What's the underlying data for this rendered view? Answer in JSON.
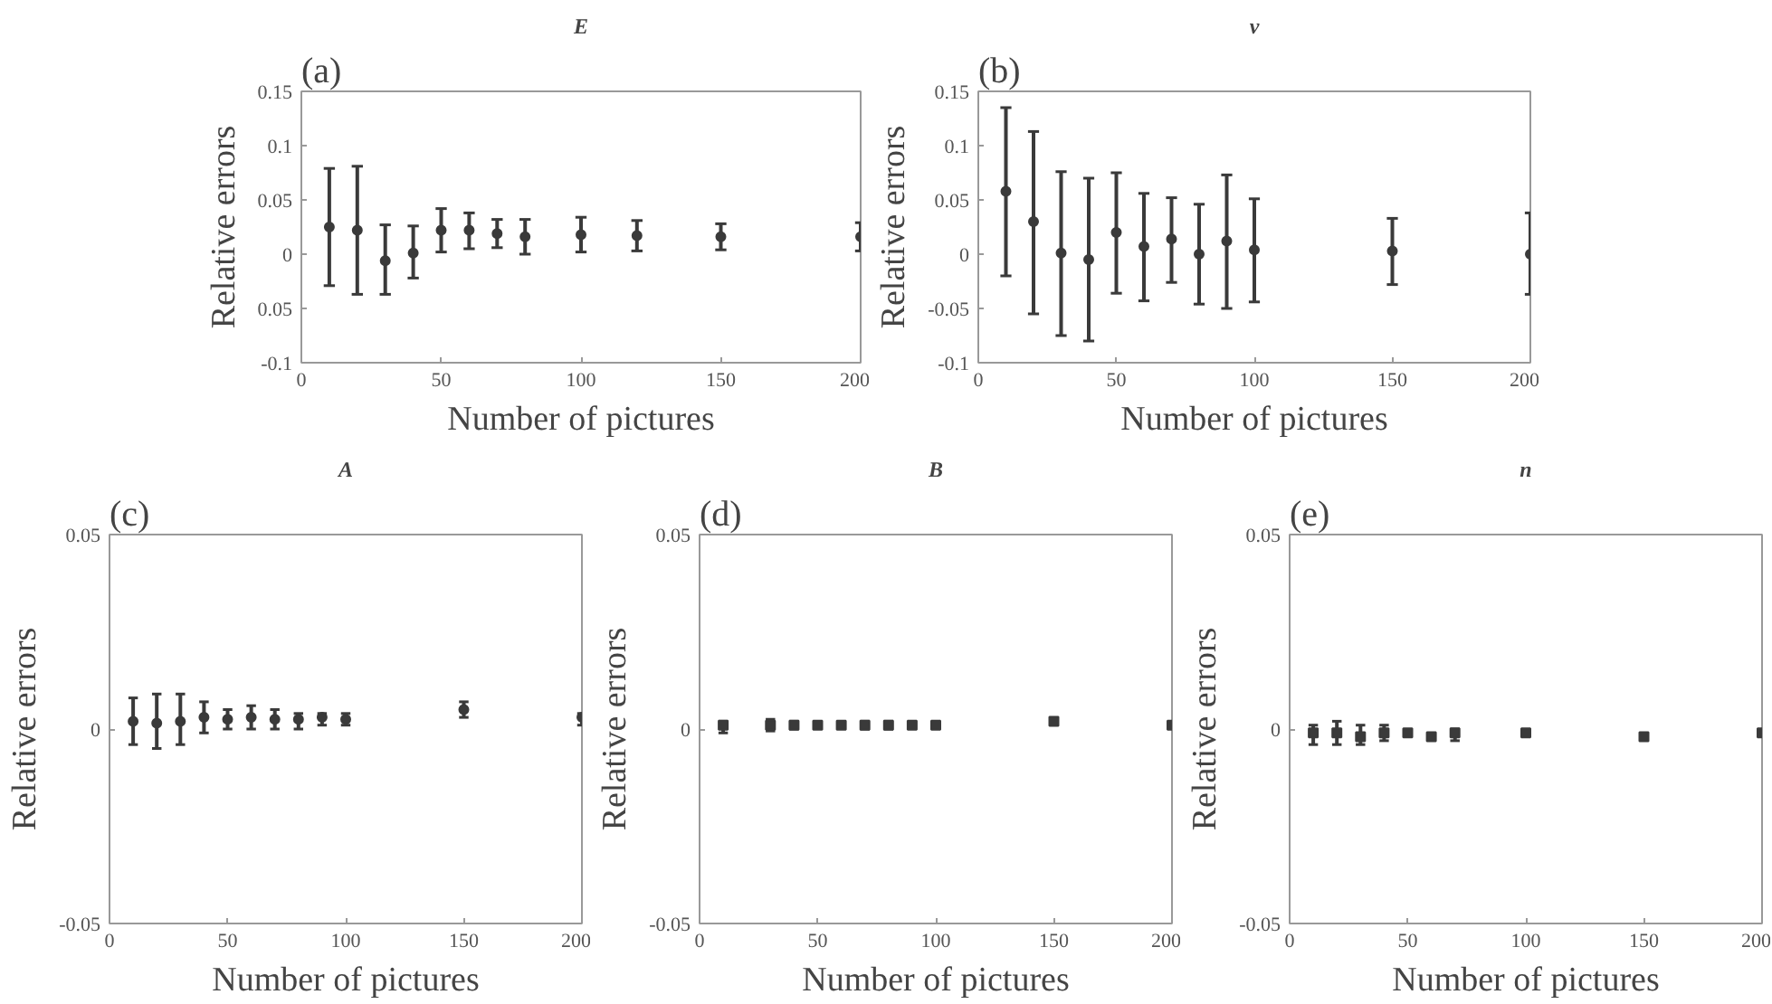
{
  "chart_data": [
    {
      "type": "scatter",
      "title": "E",
      "annotations": [
        "(a)"
      ],
      "xlabel": "Number of pictures",
      "ylabel": "Relative errors",
      "color": "#3a3a3a",
      "marker": "circle",
      "x": [
        10,
        20,
        30,
        40,
        50,
        60,
        70,
        80,
        100,
        120,
        150,
        200
      ],
      "values": [
        0.025,
        0.022,
        -0.006,
        0.001,
        0.022,
        0.022,
        0.019,
        0.016,
        0.018,
        0.017,
        0.016,
        0.016
      ],
      "errors": [
        [
          -0.029,
          0.079
        ],
        [
          -0.037,
          0.081
        ],
        [
          -0.037,
          0.027
        ],
        [
          -0.022,
          0.026
        ],
        [
          0.002,
          0.042
        ],
        [
          0.005,
          0.038
        ],
        [
          0.006,
          0.032
        ],
        [
          0.0,
          0.032
        ],
        [
          0.002,
          0.034
        ],
        [
          0.003,
          0.031
        ],
        [
          0.004,
          0.028
        ],
        [
          0.003,
          0.029
        ]
      ],
      "xlim": [
        0,
        200
      ],
      "ylim": [
        -0.1,
        0.15
      ],
      "xticks": [
        0,
        50,
        100,
        150,
        200
      ],
      "yticks": [
        -0.1,
        {
          "value": -0.05,
          "label": "0.05"
        },
        0,
        0.05,
        0.1,
        0.15
      ]
    },
    {
      "type": "scatter",
      "title": "v",
      "annotations": [
        "(b)"
      ],
      "xlabel": "Number of pictures",
      "ylabel": "Relative errors",
      "color": "#3a3a3a",
      "marker": "circle",
      "x": [
        10,
        20,
        30,
        40,
        50,
        60,
        70,
        80,
        90,
        100,
        150,
        200
      ],
      "values": [
        0.058,
        0.03,
        0.001,
        -0.005,
        0.02,
        0.007,
        0.014,
        0.0,
        0.012,
        0.004,
        0.003,
        0.0
      ],
      "errors": [
        [
          -0.02,
          0.135
        ],
        [
          -0.055,
          0.113
        ],
        [
          -0.075,
          0.076
        ],
        [
          -0.08,
          0.07
        ],
        [
          -0.036,
          0.075
        ],
        [
          -0.043,
          0.056
        ],
        [
          -0.026,
          0.052
        ],
        [
          -0.046,
          0.046
        ],
        [
          -0.05,
          0.073
        ],
        [
          -0.044,
          0.051
        ],
        [
          -0.028,
          0.033
        ],
        [
          -0.037,
          0.038
        ]
      ],
      "xlim": [
        0,
        200
      ],
      "ylim": [
        -0.1,
        0.15
      ],
      "xticks": [
        0,
        50,
        100,
        150,
        200
      ],
      "yticks": [
        -0.1,
        -0.05,
        0,
        0.05,
        0.1,
        0.15
      ]
    },
    {
      "type": "scatter",
      "title": "A",
      "annotations": [
        "(c)"
      ],
      "xlabel": "Number of pictures",
      "ylabel": "Relative errors",
      "color": "#3a3a3a",
      "marker": "circle",
      "x": [
        10,
        20,
        30,
        40,
        50,
        60,
        70,
        80,
        90,
        100,
        150,
        200
      ],
      "values": [
        0.002,
        0.0015,
        0.002,
        0.003,
        0.0025,
        0.003,
        0.0025,
        0.0025,
        0.003,
        0.0025,
        0.005,
        0.003
      ],
      "errors": [
        [
          -0.004,
          0.008
        ],
        [
          -0.005,
          0.009
        ],
        [
          -0.004,
          0.009
        ],
        [
          -0.001,
          0.007
        ],
        [
          0.0,
          0.005
        ],
        [
          0.0,
          0.006
        ],
        [
          0.0,
          0.005
        ],
        [
          0.0,
          0.004
        ],
        [
          0.001,
          0.004
        ],
        [
          0.001,
          0.004
        ],
        [
          0.003,
          0.007
        ],
        [
          0.001,
          0.004
        ]
      ],
      "xlim": [
        0,
        200
      ],
      "ylim": [
        -0.05,
        0.05
      ],
      "xticks": [
        0,
        50,
        100,
        150,
        200
      ],
      "yticks": [
        -0.05,
        0,
        0.05
      ]
    },
    {
      "type": "scatter",
      "title": "B",
      "annotations": [
        "(d)"
      ],
      "xlabel": "Number of pictures",
      "ylabel": "Relative errors",
      "color": "#3a3a3a",
      "marker": "square",
      "x": [
        10,
        30,
        40,
        50,
        60,
        70,
        80,
        90,
        100,
        150,
        200
      ],
      "values": [
        0.001,
        0.001,
        0.001,
        0.001,
        0.001,
        0.001,
        0.001,
        0.001,
        0.001,
        0.002,
        0.001
      ],
      "errors": [
        [
          -0.001,
          0.002
        ],
        [
          -0.0005,
          0.0025
        ],
        [
          0.0,
          0.002
        ],
        null,
        null,
        [
          0.0,
          0.002
        ],
        [
          0.0,
          0.002
        ],
        null,
        null,
        null,
        null
      ],
      "xlim": [
        0,
        200
      ],
      "ylim": [
        -0.05,
        0.05
      ],
      "xticks": [
        0,
        50,
        100,
        150,
        200
      ],
      "yticks": [
        -0.05,
        0,
        0.05
      ]
    },
    {
      "type": "scatter",
      "title": "n",
      "annotations": [
        "(e)"
      ],
      "xlabel": "Number of pictures",
      "ylabel": "Relative errors",
      "color": "#3a3a3a",
      "marker": "square",
      "x": [
        10,
        20,
        30,
        40,
        50,
        60,
        70,
        100,
        150,
        200
      ],
      "values": [
        -0.001,
        -0.001,
        -0.002,
        -0.001,
        -0.001,
        -0.002,
        -0.001,
        -0.001,
        -0.002,
        -0.001
      ],
      "errors": [
        [
          -0.004,
          0.001
        ],
        [
          -0.004,
          0.002
        ],
        [
          -0.004,
          0.001
        ],
        [
          -0.003,
          0.001
        ],
        null,
        null,
        [
          -0.003,
          0.0
        ],
        null,
        null,
        null
      ],
      "xlim": [
        0,
        200
      ],
      "ylim": [
        -0.05,
        0.05
      ],
      "xticks": [
        0,
        50,
        100,
        150,
        200
      ],
      "yticks": [
        -0.05,
        0,
        0.05
      ]
    }
  ]
}
